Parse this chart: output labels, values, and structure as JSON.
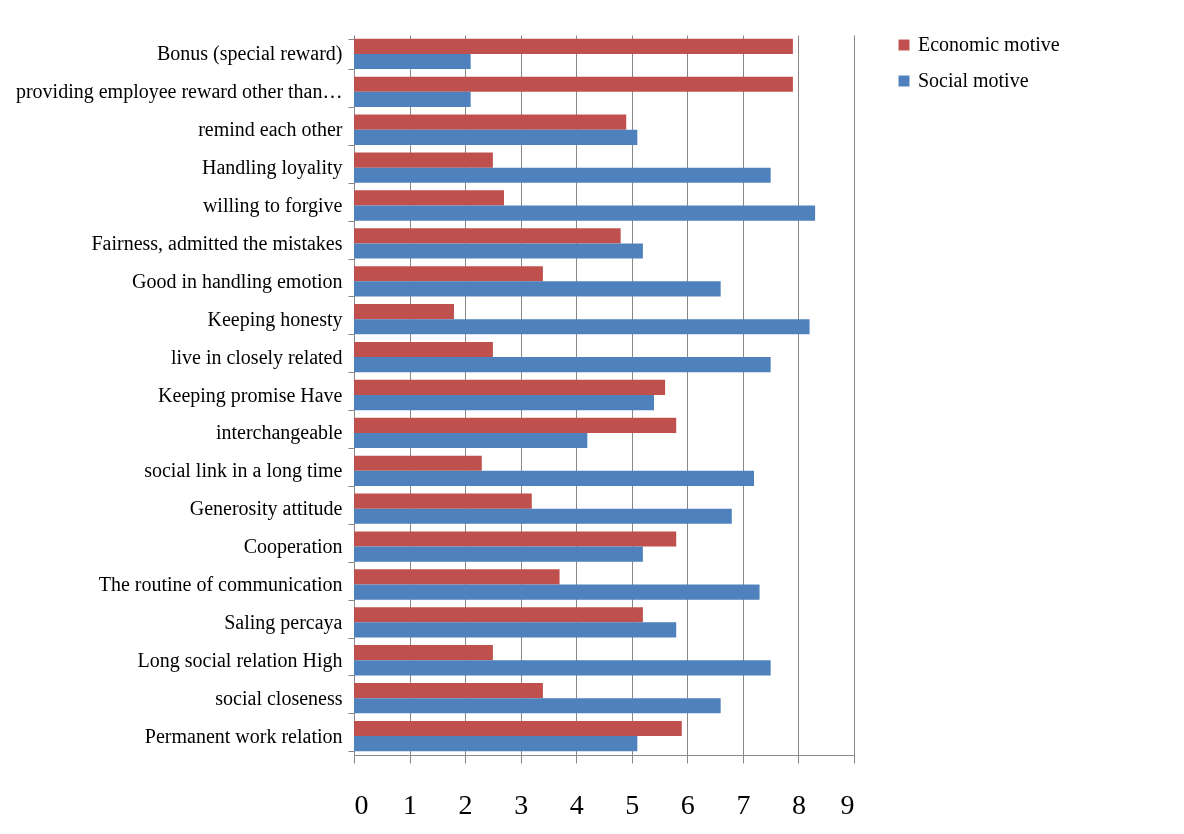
{
  "chart_data": {
    "type": "bar",
    "orientation": "horizontal",
    "categories": [
      "Bonus (special reward)",
      "providing employee reward other than…",
      "remind  each  other",
      "Handling   loyality",
      "willing to forgive",
      "Fairness, admitted the mistakes",
      "Good in handling emotion",
      "Keeping honesty",
      "live in closely related",
      "Keeping promise Have",
      "interchangeable",
      "social link in a long time",
      "Generosity attitude",
      "Cooperation",
      "The routine of communication",
      "Saling percaya",
      "Long social relation High",
      "social closeness",
      "Permanent work relation"
    ],
    "series": [
      {
        "name": "Economic motive",
        "color": "#c0504d",
        "values": [
          7.9,
          7.9,
          4.9,
          2.5,
          2.7,
          4.8,
          3.4,
          1.8,
          2.5,
          5.6,
          5.8,
          2.3,
          3.2,
          5.8,
          3.7,
          5.2,
          2.5,
          3.4,
          5.9
        ]
      },
      {
        "name": "Social motive",
        "color": "#4f81bd",
        "values": [
          2.1,
          2.1,
          5.1,
          7.5,
          8.3,
          5.2,
          6.6,
          8.2,
          7.5,
          5.4,
          4.2,
          7.2,
          6.8,
          5.2,
          7.3,
          5.8,
          7.5,
          6.6,
          5.1
        ]
      }
    ],
    "xlim": [
      0,
      9
    ],
    "xticks": [
      0,
      1,
      2,
      3,
      4,
      5,
      6,
      7,
      8,
      9
    ],
    "grid": "x",
    "legend": "right"
  }
}
